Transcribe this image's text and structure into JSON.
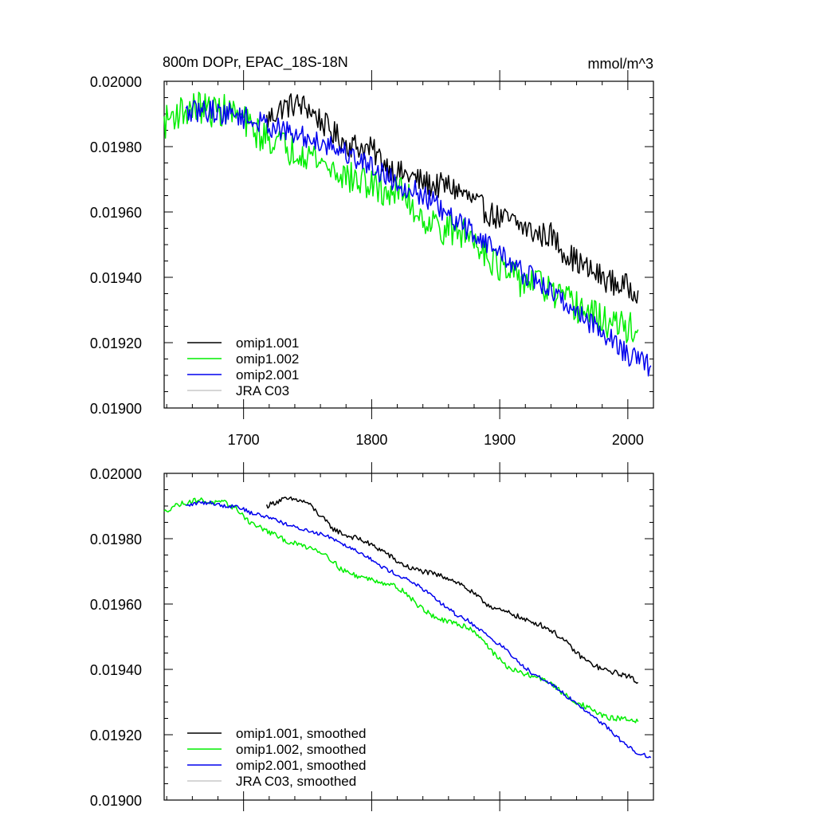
{
  "chart_data": [
    {
      "type": "line",
      "title": "800m DOPr, EPAC_18S-18N",
      "units": "mmol/m^3",
      "xlim": [
        1638,
        2020
      ],
      "ylim": [
        0.019,
        0.02
      ],
      "x_ticks": [
        1700,
        1800,
        1900,
        2000
      ],
      "x_tick_labels": [
        "1700",
        "1800",
        "1900",
        "2000"
      ],
      "y_ticks": [
        0.019,
        0.0192,
        0.0194,
        0.0196,
        0.0198,
        0.02
      ],
      "y_tick_labels": [
        "0.01900",
        "0.01920",
        "0.01940",
        "0.01960",
        "0.01980",
        "0.02000"
      ],
      "series": [
        {
          "name": "omip1.001",
          "label": "omip1.001",
          "color": "#000000",
          "x": [
            1718,
            1730,
            1740,
            1750,
            1760,
            1770,
            1780,
            1790,
            1800,
            1810,
            1820,
            1830,
            1840,
            1850,
            1860,
            1870,
            1880,
            1890,
            1900,
            1910,
            1920,
            1930,
            1940,
            1950,
            1960,
            1970,
            1980,
            1990,
            2000,
            2008
          ],
          "y": [
            0.01988,
            0.01992,
            0.01993,
            0.01992,
            0.01988,
            0.01984,
            0.01981,
            0.0198,
            0.01979,
            0.01975,
            0.01972,
            0.01971,
            0.01969,
            0.01968,
            0.01968,
            0.01966,
            0.01963,
            0.0196,
            0.01958,
            0.01957,
            0.01955,
            0.01953,
            0.01953,
            0.01948,
            0.01945,
            0.01942,
            0.0194,
            0.01938,
            0.01937,
            0.01936
          ],
          "noise": 4e-05
        },
        {
          "name": "omip1.002",
          "label": "omip1.002",
          "color": "#00ee00",
          "x": [
            1638,
            1645,
            1655,
            1665,
            1675,
            1685,
            1695,
            1705,
            1715,
            1725,
            1735,
            1745,
            1755,
            1765,
            1775,
            1785,
            1795,
            1805,
            1815,
            1825,
            1835,
            1845,
            1855,
            1865,
            1875,
            1885,
            1895,
            1905,
            1915,
            1925,
            1935,
            1945,
            1955,
            1965,
            1975,
            1985,
            1995,
            2008
          ],
          "y": [
            0.01987,
            0.0199,
            0.01991,
            0.01992,
            0.01991,
            0.01991,
            0.0199,
            0.01986,
            0.01983,
            0.01982,
            0.01979,
            0.01979,
            0.01977,
            0.01974,
            0.01972,
            0.0197,
            0.01969,
            0.01967,
            0.01966,
            0.01966,
            0.0196,
            0.01957,
            0.01955,
            0.01954,
            0.01953,
            0.0195,
            0.01945,
            0.01941,
            0.01939,
            0.01939,
            0.01937,
            0.01934,
            0.01932,
            0.0193,
            0.01928,
            0.01926,
            0.01925,
            0.01924
          ],
          "noise": 5e-05
        },
        {
          "name": "omip2.001",
          "label": "omip2.001",
          "color": "#0000ee",
          "x": [
            1655,
            1665,
            1675,
            1685,
            1695,
            1705,
            1715,
            1725,
            1735,
            1745,
            1755,
            1765,
            1775,
            1785,
            1795,
            1805,
            1815,
            1825,
            1835,
            1845,
            1855,
            1865,
            1875,
            1885,
            1895,
            1905,
            1915,
            1925,
            1935,
            1945,
            1955,
            1965,
            1975,
            1985,
            1995,
            2005,
            2018
          ],
          "y": [
            0.0199,
            0.01991,
            0.01991,
            0.0199,
            0.0199,
            0.01988,
            0.01987,
            0.01986,
            0.01984,
            0.01983,
            0.01982,
            0.01981,
            0.01979,
            0.01977,
            0.01975,
            0.01973,
            0.0197,
            0.01968,
            0.01966,
            0.01964,
            0.0196,
            0.01957,
            0.01955,
            0.01952,
            0.01949,
            0.01946,
            0.01942,
            0.0194,
            0.01937,
            0.01934,
            0.01931,
            0.01928,
            0.01925,
            0.01922,
            0.01918,
            0.01915,
            0.01913
          ],
          "noise": 3.5e-05
        },
        {
          "name": "JRA C03",
          "label": "JRA C03",
          "color": "#c8c8c8",
          "x": [],
          "y": []
        }
      ]
    },
    {
      "type": "line",
      "title": "",
      "xlim": [
        1638,
        2020
      ],
      "ylim": [
        0.019,
        0.02
      ],
      "x_ticks": [
        1700,
        1800,
        1900,
        2000
      ],
      "y_ticks": [
        0.019,
        0.0192,
        0.0194,
        0.0196,
        0.0198,
        0.02
      ],
      "y_tick_labels": [
        "0.01900",
        "0.01920",
        "0.01940",
        "0.01960",
        "0.01980",
        "0.02000"
      ],
      "series": [
        {
          "name": "omip1.001, smoothed",
          "label": "omip1.001, smoothed",
          "color": "#000000",
          "x": [
            1718,
            1730,
            1740,
            1750,
            1760,
            1770,
            1780,
            1790,
            1800,
            1810,
            1820,
            1830,
            1840,
            1850,
            1860,
            1870,
            1880,
            1890,
            1900,
            1910,
            1920,
            1930,
            1940,
            1950,
            1960,
            1970,
            1980,
            1990,
            2000,
            2008
          ],
          "y": [
            0.0199,
            0.01992,
            0.01992,
            0.01991,
            0.01987,
            0.01983,
            0.01981,
            0.0198,
            0.01978,
            0.01976,
            0.01973,
            0.01971,
            0.0197,
            0.01969,
            0.01968,
            0.01966,
            0.01963,
            0.0196,
            0.01958,
            0.01957,
            0.01955,
            0.01954,
            0.01952,
            0.01949,
            0.01945,
            0.01942,
            0.0194,
            0.01939,
            0.01938,
            0.01936
          ],
          "noise": 8e-06
        },
        {
          "name": "omip1.002, smoothed",
          "label": "omip1.002, smoothed",
          "color": "#00ee00",
          "x": [
            1638,
            1645,
            1655,
            1665,
            1675,
            1685,
            1695,
            1705,
            1715,
            1725,
            1735,
            1745,
            1755,
            1765,
            1775,
            1785,
            1795,
            1805,
            1815,
            1825,
            1835,
            1845,
            1855,
            1865,
            1875,
            1885,
            1895,
            1905,
            1915,
            1925,
            1935,
            1945,
            1955,
            1965,
            1975,
            1985,
            1995,
            2008
          ],
          "y": [
            0.01988,
            0.0199,
            0.01991,
            0.01992,
            0.01991,
            0.01991,
            0.01989,
            0.01985,
            0.01983,
            0.01981,
            0.01979,
            0.01978,
            0.01977,
            0.01975,
            0.01971,
            0.01969,
            0.01968,
            0.01967,
            0.01966,
            0.01964,
            0.0196,
            0.01957,
            0.01955,
            0.01954,
            0.01953,
            0.0195,
            0.01945,
            0.01941,
            0.01939,
            0.01938,
            0.01937,
            0.01934,
            0.01931,
            0.01929,
            0.01927,
            0.01925,
            0.01925,
            0.01924
          ],
          "noise": 8e-06
        },
        {
          "name": "omip2.001, smoothed",
          "label": "omip2.001, smoothed",
          "color": "#0000ee",
          "x": [
            1655,
            1665,
            1675,
            1685,
            1695,
            1705,
            1715,
            1725,
            1735,
            1745,
            1755,
            1765,
            1775,
            1785,
            1795,
            1805,
            1815,
            1825,
            1835,
            1845,
            1855,
            1865,
            1875,
            1885,
            1895,
            1905,
            1915,
            1925,
            1935,
            1945,
            1955,
            1965,
            1975,
            1985,
            1995,
            2005,
            2018
          ],
          "y": [
            0.0199,
            0.01991,
            0.01991,
            0.0199,
            0.0199,
            0.01988,
            0.01987,
            0.01986,
            0.01984,
            0.01983,
            0.01982,
            0.01981,
            0.01979,
            0.01977,
            0.01975,
            0.01972,
            0.0197,
            0.01968,
            0.01966,
            0.01963,
            0.0196,
            0.01957,
            0.01955,
            0.01952,
            0.01949,
            0.01946,
            0.01942,
            0.01939,
            0.01937,
            0.01934,
            0.01931,
            0.01928,
            0.01925,
            0.01922,
            0.01918,
            0.01915,
            0.01913
          ],
          "noise": 6e-06
        },
        {
          "name": "JRA C03, smoothed",
          "label": "JRA C03, smoothed",
          "color": "#c8c8c8",
          "x": [],
          "y": []
        }
      ]
    }
  ]
}
